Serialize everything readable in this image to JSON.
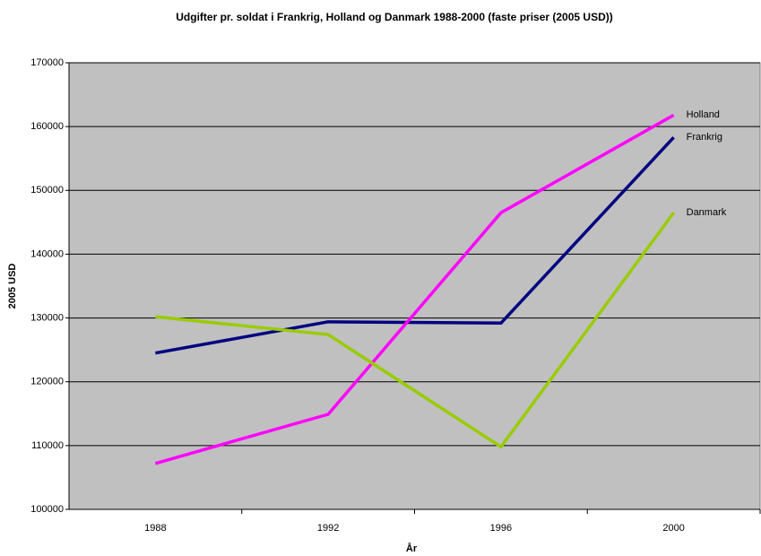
{
  "chart_data": {
    "type": "line",
    "title": "Udgifter pr. soldat i Frankrig, Holland og Danmark 1988-2000 (faste priser (2005 USD))",
    "x_label": "År",
    "y_label": "2005 USD",
    "categories": [
      "1988",
      "1992",
      "1996",
      "2000"
    ],
    "series": [
      {
        "name": "Frankrig",
        "color": "#000080",
        "values": [
          124500,
          129400,
          129200,
          158300
        ]
      },
      {
        "name": "Holland",
        "color": "#ff00ff",
        "values": [
          107200,
          114900,
          146500,
          161800
        ]
      },
      {
        "name": "Danmark",
        "color": "#99cc00",
        "values": [
          130200,
          127400,
          109800,
          146500
        ]
      }
    ],
    "ylim": [
      100000,
      170000
    ],
    "yticks": [
      100000,
      110000,
      120000,
      130000,
      140000,
      150000,
      160000,
      170000
    ],
    "grid": true
  }
}
